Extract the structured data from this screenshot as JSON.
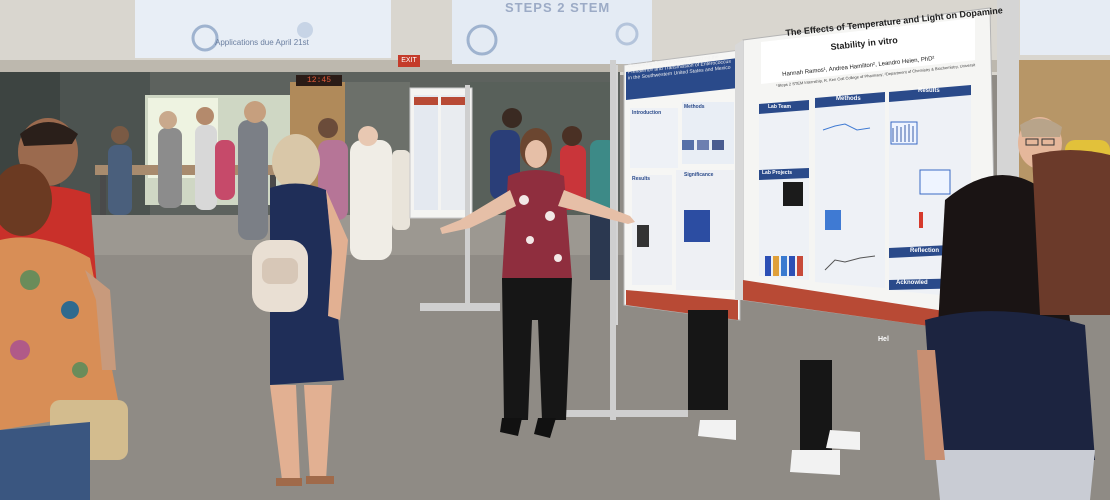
{
  "screens": {
    "left_footer": "Applications due April 21st",
    "center_title": "STEPS 2 STEM"
  },
  "signs": {
    "exit": "EXIT",
    "led_display": "12:45"
  },
  "poster_main": {
    "title_line1": "The Effects of Temperature and Light on Dopamine",
    "title_line2": "Stability in vitro",
    "authors": "Hannah Ramos¹, Andrea Hamilton², Leandro Heien, PhD²",
    "affiliation": "¹Steps 2 STEM Internship, R. Ken Coit College of Pharmacy; ²Department of Chemistry & Biochemistry, University of Arizona",
    "sections": {
      "lab_team": "Lab Team",
      "methods": "Methods",
      "results": "Results",
      "lab_projects": "Lab Projects",
      "reflection": "Reflection",
      "acknowledgements": "Acknowled",
      "help": "Hel"
    }
  },
  "poster_left": {
    "title": "Comparing Contamination: Analyzing the Prevalence and Transmission of Enterococcus in the Southwestern United States and Mexico",
    "sections": {
      "intro": "Introduction",
      "methods": "Methods",
      "results": "Results",
      "significance": "Significance"
    }
  },
  "colors": {
    "poster_header_blue": "#2a4a8a",
    "poster_footer_red": "#b84a35",
    "carpet": "#8f8b85"
  }
}
